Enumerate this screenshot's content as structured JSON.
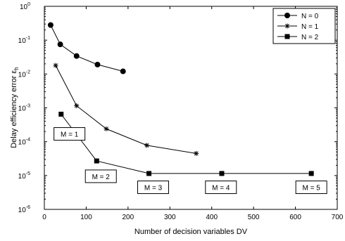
{
  "chart_data": {
    "type": "line",
    "xlabel": "Number of decision variables DV",
    "ylabel_main": "Delay efficiency error ε",
    "ylabel_sub": "h",
    "x_scale": "linear",
    "y_scale": "log",
    "xlim": [
      0,
      700
    ],
    "ylim_exponents": [
      -6,
      0
    ],
    "x_ticks": [
      "0",
      "100",
      "200",
      "300",
      "400",
      "500",
      "600",
      "700"
    ],
    "y_ticks": [
      {
        "base": "10",
        "exp": "-6"
      },
      {
        "base": "10",
        "exp": "-5"
      },
      {
        "base": "10",
        "exp": "-4"
      },
      {
        "base": "10",
        "exp": "-3"
      },
      {
        "base": "10",
        "exp": "-2"
      },
      {
        "base": "10",
        "exp": "-1"
      },
      {
        "base": "10",
        "exp": "0"
      }
    ],
    "grid": false,
    "legend_position": "top-right",
    "series": [
      {
        "name": "N = 0",
        "marker": "circle",
        "x": [
          15,
          38,
          77,
          127,
          188
        ],
        "y": [
          0.28,
          0.075,
          0.034,
          0.019,
          0.012
        ]
      },
      {
        "name": "N = 1",
        "marker": "star",
        "x": [
          27,
          77,
          148,
          245,
          363
        ],
        "y": [
          0.018,
          0.00115,
          0.00024,
          7.8e-05,
          4.5e-05
        ]
      },
      {
        "name": "N = 2",
        "marker": "square",
        "x": [
          40,
          125,
          250,
          424,
          638
        ],
        "y": [
          0.00065,
          2.7e-05,
          1.15e-05,
          1.15e-05,
          1.15e-05
        ]
      }
    ],
    "annotations": [
      {
        "text": "M = 1",
        "x": 60,
        "y": 0.00017
      },
      {
        "text": "M = 2",
        "x": 135,
        "y": 9.5e-06
      },
      {
        "text": "M = 3",
        "x": 260,
        "y": 4.5e-06
      },
      {
        "text": "M = 4",
        "x": 422,
        "y": 4.5e-06
      },
      {
        "text": "M = 5",
        "x": 638,
        "y": 4.5e-06
      }
    ]
  }
}
